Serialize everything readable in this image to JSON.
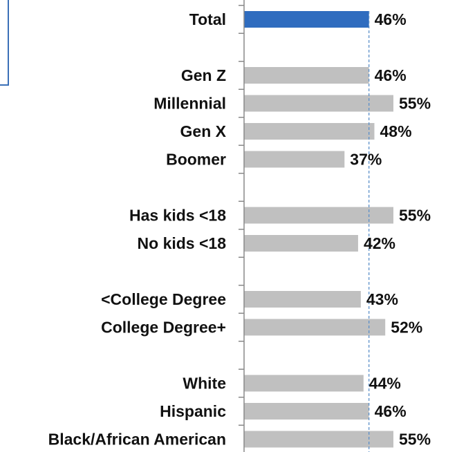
{
  "chart_data": {
    "type": "bar",
    "orientation": "horizontal",
    "categories": [
      "Total",
      "Gen Z",
      "Millennial",
      "Gen X",
      "Boomer",
      "Has kids <18",
      "No kids <18",
      "<College Degree",
      "College Degree+",
      "White",
      "Hispanic",
      "Black/African American"
    ],
    "values": [
      46,
      46,
      55,
      48,
      37,
      55,
      42,
      43,
      52,
      44,
      46,
      55
    ],
    "value_labels": [
      "46%",
      "46%",
      "55%",
      "48%",
      "37%",
      "55%",
      "42%",
      "43%",
      "52%",
      "44%",
      "46%",
      "55%"
    ],
    "highlight_index": 0,
    "groups": [
      [
        0
      ],
      [
        1,
        2,
        3,
        4
      ],
      [
        5,
        6
      ],
      [
        7,
        8
      ],
      [
        9,
        10,
        11
      ]
    ],
    "reference_line": 46,
    "xlim": [
      0,
      55
    ],
    "title": "",
    "xlabel": "",
    "ylabel": "",
    "grid": false,
    "colors": {
      "highlight_bar": "#2f6cbf",
      "bar": "#c0c0c0",
      "reference_line": "#5b8fc9",
      "axis": "#888888",
      "text": "#111111"
    }
  }
}
